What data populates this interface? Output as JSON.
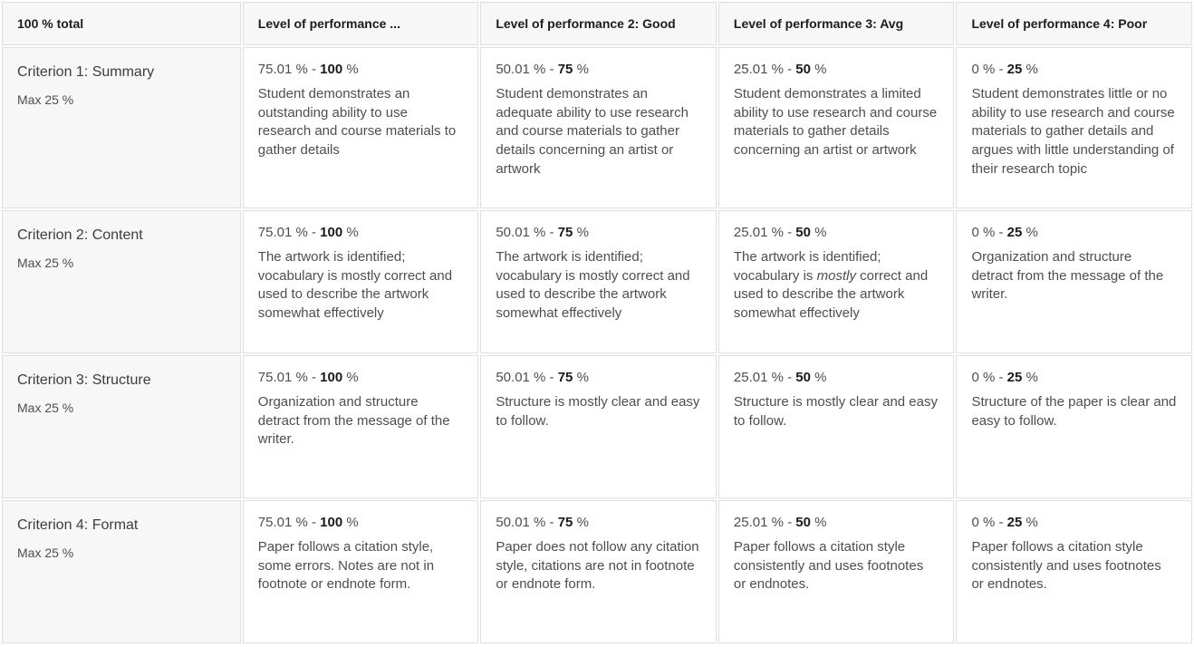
{
  "colors": {
    "shaded_bg": "#f7f7f7",
    "cell_bg": "#ffffff",
    "border": "#dfdfdf",
    "text_dark": "#1a1a1a",
    "text_gray": "#4e4e4e"
  },
  "header": {
    "columns": [
      "100 % total",
      "Level of performance ...",
      "Level of performance 2: Good",
      "Level of performance 3: Avg",
      "Level of performance 4: Poor"
    ]
  },
  "rows": [
    {
      "criterion": "Criterion 1: Summary",
      "max_label": "Max 25 %",
      "levels": [
        {
          "range_pre": "75.01 % - ",
          "range_bold": "100",
          "range_post": " %",
          "desc_pre": "Student demonstrates an outstanding ability to use research and course materials to gather details"
        },
        {
          "range_pre": "50.01 % - ",
          "range_bold": "75",
          "range_post": " %",
          "desc_pre": "Student demonstrates an adequate ability to use research and course materials to gather details concerning an artist or artwork"
        },
        {
          "range_pre": "25.01 % - ",
          "range_bold": "50",
          "range_post": " %",
          "desc_pre": "Student demonstrates a limited ability to use research and course materials to gather details concerning an artist or artwork"
        },
        {
          "range_pre": "0 % - ",
          "range_bold": "25",
          "range_post": " %",
          "desc_pre": "Student demonstrates little or no ability to use research and course materials to gather details and argues with little understanding of their research topic"
        }
      ]
    },
    {
      "criterion": "Criterion 2: Content",
      "max_label": "Max 25 %",
      "levels": [
        {
          "range_pre": "75.01 % - ",
          "range_bold": "100",
          "range_post": " %",
          "desc_pre": "The artwork is identified; vocabulary is mostly correct and used to describe the artwork somewhat effectively"
        },
        {
          "range_pre": "50.01 % - ",
          "range_bold": "75",
          "range_post": " %",
          "desc_pre": "The artwork is identified; vocabulary is mostly correct and used to describe the artwork somewhat effectively"
        },
        {
          "range_pre": "25.01 % - ",
          "range_bold": "50",
          "range_post": " %",
          "desc_pre": "The artwork is identified; vocabulary is ",
          "desc_italic": "mostly",
          "desc_post": " correct and used to describe the artwork somewhat effectively"
        },
        {
          "range_pre": "0 % - ",
          "range_bold": "25",
          "range_post": " %",
          "desc_pre": "Organization and structure detract from the message of the writer."
        }
      ]
    },
    {
      "criterion": "Criterion 3: Structure",
      "max_label": "Max 25 %",
      "levels": [
        {
          "range_pre": "75.01 % - ",
          "range_bold": "100",
          "range_post": " %",
          "desc_pre": "Organization and structure detract from the message of the writer."
        },
        {
          "range_pre": "50.01 % - ",
          "range_bold": "75",
          "range_post": " %",
          "desc_pre": "Structure is mostly clear and easy to follow."
        },
        {
          "range_pre": "25.01 % - ",
          "range_bold": "50",
          "range_post": " %",
          "desc_pre": "Structure is mostly clear and easy to follow."
        },
        {
          "range_pre": "0 % - ",
          "range_bold": "25",
          "range_post": " %",
          "desc_pre": "Structure of the paper is clear and easy to follow."
        }
      ]
    },
    {
      "criterion": "Criterion 4: Format",
      "max_label": "Max 25 %",
      "levels": [
        {
          "range_pre": "75.01 % - ",
          "range_bold": "100",
          "range_post": " %",
          "desc_pre": "Paper follows a citation style, some errors. Notes are not in footnote or endnote form."
        },
        {
          "range_pre": "50.01 % - ",
          "range_bold": "75",
          "range_post": " %",
          "desc_pre": "Paper does not follow any citation style, citations are not in footnote or endnote form."
        },
        {
          "range_pre": "25.01 % - ",
          "range_bold": "50",
          "range_post": " %",
          "desc_pre": "Paper follows a citation style consistently and uses footnotes or endnotes."
        },
        {
          "range_pre": "0 % - ",
          "range_bold": "25",
          "range_post": " %",
          "desc_pre": "Paper follows a citation style consistently and uses footnotes or endnotes."
        }
      ]
    }
  ]
}
